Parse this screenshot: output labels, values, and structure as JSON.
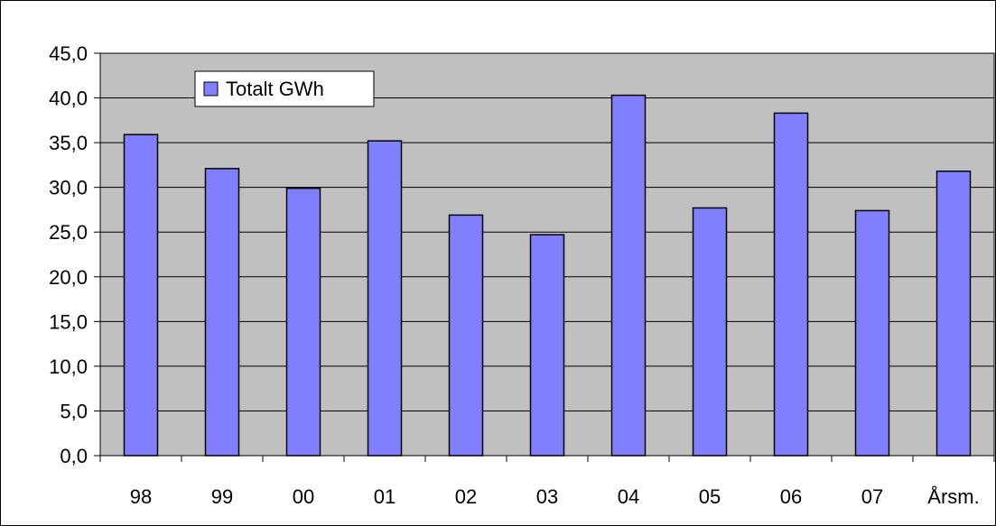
{
  "chart_data": {
    "type": "bar",
    "categories": [
      "98",
      "99",
      "00",
      "01",
      "02",
      "03",
      "04",
      "05",
      "06",
      "07",
      "Årsm."
    ],
    "series": [
      {
        "name": "Totalt GWh",
        "values": [
          35.9,
          32.1,
          29.9,
          35.2,
          26.9,
          24.7,
          40.3,
          27.7,
          38.3,
          27.4,
          31.8
        ]
      }
    ],
    "y_tick_labels": [
      "0,0",
      "5,0",
      "10,0",
      "15,0",
      "20,0",
      "25,0",
      "30,0",
      "35,0",
      "40,0",
      "45,0"
    ],
    "ylim": [
      0,
      45
    ],
    "grid": true,
    "legend_placement": "top-left",
    "colors": {
      "bar": "#8080ff",
      "plot_background": "#c0c0c0",
      "gridline": "#000000"
    }
  }
}
